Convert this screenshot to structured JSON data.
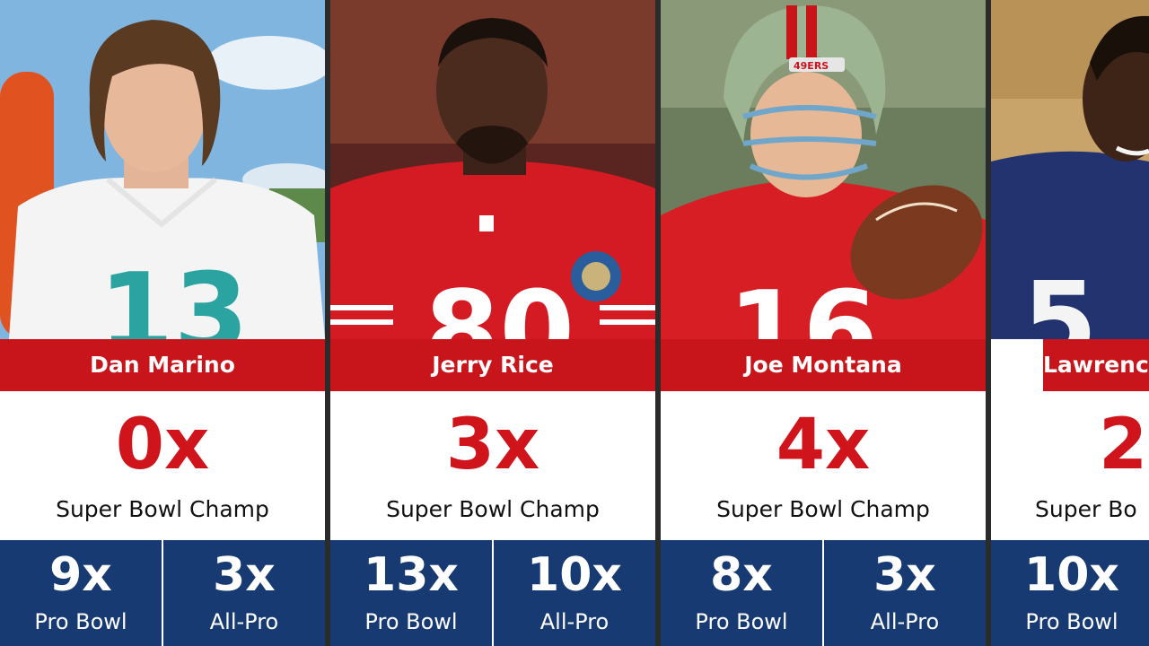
{
  "players": [
    {
      "name": "Dan Marino",
      "super_bowl_count": "0x",
      "super_bowl_label": "Super Bowl Champ",
      "pro_bowl_count": "9x",
      "pro_bowl_label": "Pro Bowl",
      "all_pro_count": "3x",
      "all_pro_label": "All-Pro",
      "jersey_number": "13"
    },
    {
      "name": "Jerry Rice",
      "super_bowl_count": "3x",
      "super_bowl_label": "Super Bowl Champ",
      "pro_bowl_count": "13x",
      "pro_bowl_label": "Pro Bowl",
      "all_pro_count": "10x",
      "all_pro_label": "All-Pro",
      "jersey_number": "80"
    },
    {
      "name": "Joe Montana",
      "super_bowl_count": "4x",
      "super_bowl_label": "Super Bowl Champ",
      "pro_bowl_count": "8x",
      "pro_bowl_label": "Pro Bowl",
      "all_pro_count": "3x",
      "all_pro_label": "All-Pro",
      "jersey_number": "16",
      "helmet_text": "49ERS"
    },
    {
      "name": "Lawrence",
      "super_bowl_count": "2",
      "super_bowl_label": "Super Bo",
      "pro_bowl_count": "10x",
      "pro_bowl_label": "Pro Bowl",
      "jersey_number": "5"
    }
  ],
  "colors": {
    "name_bar": "#c8151b",
    "count_red": "#d0141b",
    "stats_blue": "#173a73"
  }
}
